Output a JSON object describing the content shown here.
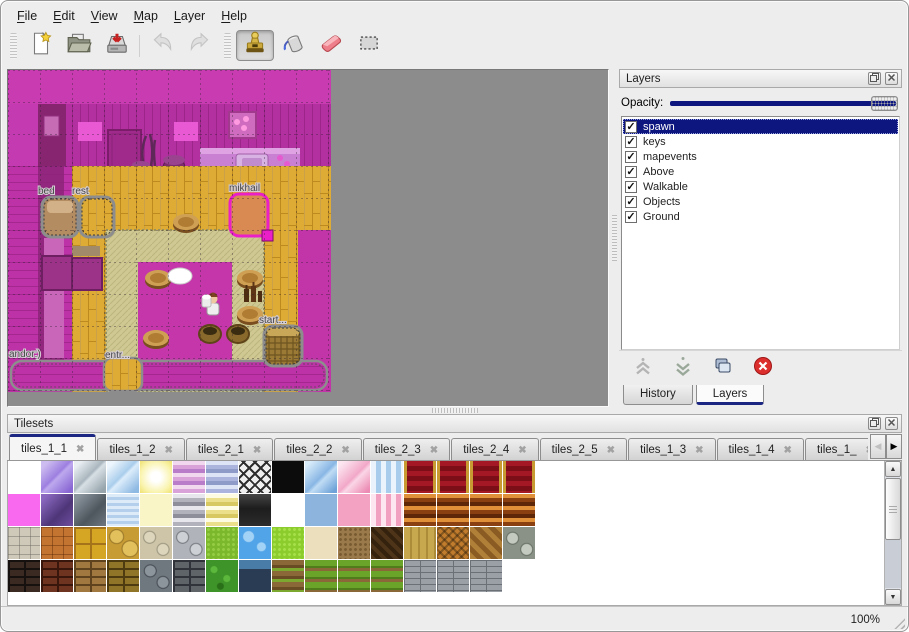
{
  "menu": {
    "items": [
      {
        "key": "F",
        "rest": "ile"
      },
      {
        "key": "E",
        "rest": "dit"
      },
      {
        "key": "V",
        "rest": "iew"
      },
      {
        "key": "M",
        "rest": "ap"
      },
      {
        "key": "L",
        "rest": "ayer"
      },
      {
        "key": "H",
        "rest": "elp"
      }
    ]
  },
  "toolbar": {
    "buttons": [
      {
        "icon": "new-file-icon",
        "enabled": true,
        "active": false
      },
      {
        "icon": "open-folder-icon",
        "enabled": true,
        "active": false
      },
      {
        "icon": "save-icon",
        "enabled": true,
        "active": false
      },
      {
        "icon": "undo-icon",
        "enabled": false,
        "active": false
      },
      {
        "icon": "redo-icon",
        "enabled": false,
        "active": false
      },
      {
        "icon": "stamp-tool-icon",
        "enabled": true,
        "active": true
      },
      {
        "icon": "bucket-fill-icon",
        "enabled": true,
        "active": false
      },
      {
        "icon": "eraser-icon",
        "enabled": true,
        "active": false
      },
      {
        "icon": "rect-select-icon",
        "enabled": true,
        "active": false
      }
    ]
  },
  "map": {
    "object_labels": {
      "bed": "bed",
      "rest": "rest",
      "mikhail": "mikhail",
      "start": "start...",
      "andor": "andor:)",
      "entr": "entr..."
    }
  },
  "layers_panel": {
    "title": "Layers",
    "opacity_label": "Opacity:",
    "layers": [
      {
        "label": "spawn",
        "checked": true,
        "selected": true
      },
      {
        "label": "keys",
        "checked": true,
        "selected": false
      },
      {
        "label": "mapevents",
        "checked": true,
        "selected": false
      },
      {
        "label": "Above",
        "checked": true,
        "selected": false
      },
      {
        "label": "Walkable",
        "checked": true,
        "selected": false
      },
      {
        "label": "Objects",
        "checked": true,
        "selected": false
      },
      {
        "label": "Ground",
        "checked": true,
        "selected": false
      }
    ],
    "tabs": [
      {
        "label": "History",
        "active": false
      },
      {
        "label": "Layers",
        "active": true
      }
    ]
  },
  "tilesets_panel": {
    "title": "Tilesets",
    "tabs": [
      {
        "label": "tiles_1_1",
        "active": true
      },
      {
        "label": "tiles_1_2",
        "active": false
      },
      {
        "label": "tiles_2_1",
        "active": false
      },
      {
        "label": "tiles_2_2",
        "active": false
      },
      {
        "label": "tiles_2_3",
        "active": false
      },
      {
        "label": "tiles_2_4",
        "active": false
      },
      {
        "label": "tiles_2_5",
        "active": false
      },
      {
        "label": "tiles_1_3",
        "active": false
      },
      {
        "label": "tiles_1_4",
        "active": false
      },
      {
        "label": "tiles_1_",
        "active": false
      }
    ],
    "tiles": [
      "white",
      "glass-purple",
      "glass-gray",
      "glass-blue",
      "glow",
      "stripe-pink",
      "stripe-blue",
      "lattice",
      "black",
      "glass-blue2",
      "glass-pink",
      "drape-blue",
      "carpet-red",
      "carpet-red",
      "carpet-red",
      "carpet-red",
      "magenta",
      "glass-dkpurple",
      "glass-dkgray",
      "water-light",
      "pale-yellow",
      "stripe-gray",
      "stripe-yellow",
      "plaque",
      "white",
      "blue-solid",
      "pink-solid",
      "drape-pink",
      "stripe-brown",
      "stripe-brown",
      "stripe-brown",
      "stripe-brown",
      "stone-white",
      "stone-orange",
      "tile-yellow",
      "stone-gold",
      "cobble-pale",
      "cobble-gray",
      "grass",
      "water-blue",
      "grass-bright",
      "cream",
      "dirt",
      "wood-dark",
      "planks",
      "weave",
      "herringbone",
      "logs",
      "brick-dark",
      "brick-red",
      "brick-tan",
      "brick-gold",
      "stone-dark",
      "brick-gray",
      "hedge",
      "brick-blue",
      "dirt-rows",
      "grass-rows",
      "grass-rows",
      "grass-rows",
      "brick-gray2",
      "brick-gray2",
      "brick-gray2",
      "empty"
    ]
  },
  "status_bar": {
    "zoom_level": "100%"
  },
  "colors": {
    "selection_navy": "#0d167e",
    "tab_accent_navy": "#1b2582",
    "map_overlay_magenta": "#c93cb1",
    "floor_yellow": "#deab34",
    "selected_object_pink": "#ea1fc8",
    "panel_bg": "#ededed"
  }
}
